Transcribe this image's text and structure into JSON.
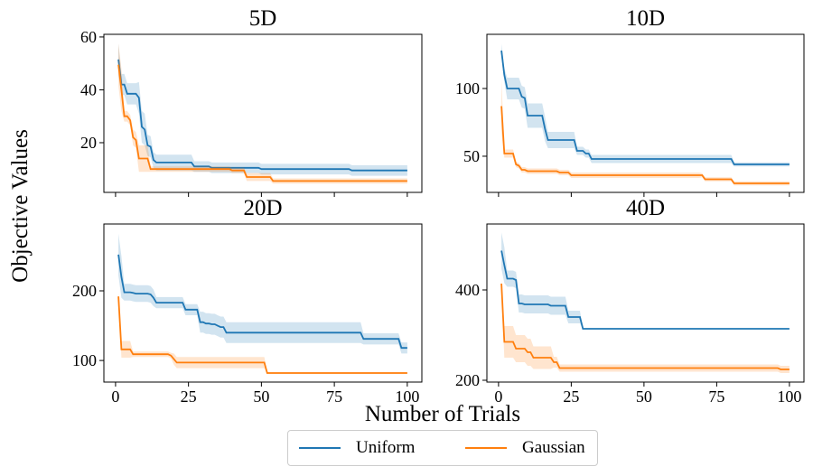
{
  "chart_data": {
    "type": "line",
    "xlabel": "Number of Trials",
    "ylabel": "Objective Values",
    "legend": {
      "placement": "bottom-center",
      "entries": [
        {
          "name": "Uniform",
          "color": "#1f77b4"
        },
        {
          "name": "Gaussian",
          "color": "#ff7f0e"
        }
      ]
    },
    "panels": [
      {
        "title": "5D",
        "xlim": [
          -4,
          105
        ],
        "ylim": [
          1.2,
          61
        ],
        "xticks": [
          0,
          25,
          50,
          75,
          100
        ],
        "xtick_labels_shown": false,
        "yticks": [
          20,
          40,
          60
        ],
        "series": [
          {
            "name": "Uniform",
            "steps": [
              [
                1,
                51.5
              ],
              [
                2,
                42
              ],
              [
                4,
                38.5
              ],
              [
                8,
                37
              ],
              [
                9,
                26
              ],
              [
                10,
                25
              ],
              [
                11,
                19
              ],
              [
                12,
                18.5
              ],
              [
                13,
                13.5
              ],
              [
                14,
                12.5
              ],
              [
                27,
                11
              ],
              [
                33,
                10.5
              ],
              [
                50,
                10
              ],
              [
                81,
                9.5
              ],
              [
                100,
                9.5
              ]
            ],
            "band": [
              [
                1,
                6
              ],
              [
                2,
                4
              ],
              [
                8,
                6
              ],
              [
                11,
                4
              ],
              [
                13,
                3
              ],
              [
                27,
                2
              ],
              [
                50,
                2
              ],
              [
                100,
                2
              ]
            ]
          },
          {
            "name": "Gaussian",
            "steps": [
              [
                1,
                49.5
              ],
              [
                2,
                40
              ],
              [
                3,
                30
              ],
              [
                5,
                28.5
              ],
              [
                6,
                22
              ],
              [
                7,
                21
              ],
              [
                8,
                14
              ],
              [
                12,
                10
              ],
              [
                40,
                9.5
              ],
              [
                45,
                7
              ],
              [
                52,
                7
              ],
              [
                54,
                5.5
              ],
              [
                100,
                5.5
              ]
            ],
            "band": [
              [
                1,
                8
              ],
              [
                3,
                2
              ],
              [
                6,
                3
              ],
              [
                8,
                5
              ],
              [
                12,
                1
              ],
              [
                45,
                1.5
              ],
              [
                54,
                1
              ],
              [
                100,
                1
              ]
            ]
          }
        ]
      },
      {
        "title": "10D",
        "xlim": [
          -4,
          105
        ],
        "ylim": [
          23.3,
          140
        ],
        "xticks": [
          0,
          25,
          50,
          75,
          100
        ],
        "xtick_labels_shown": false,
        "yticks": [
          50,
          100
        ],
        "series": [
          {
            "name": "Uniform",
            "steps": [
              [
                1,
                128
              ],
              [
                2,
                110
              ],
              [
                3,
                100
              ],
              [
                7,
                100
              ],
              [
                8,
                94
              ],
              [
                9,
                93
              ],
              [
                10,
                80
              ],
              [
                15,
                80
              ],
              [
                16,
                70
              ],
              [
                17,
                62
              ],
              [
                26,
                62
              ],
              [
                27,
                54
              ],
              [
                29,
                54
              ],
              [
                30,
                52
              ],
              [
                31,
                52
              ],
              [
                32,
                48
              ],
              [
                80,
                48
              ],
              [
                81,
                44
              ],
              [
                100,
                44
              ]
            ],
            "band": [
              [
                1,
                5
              ],
              [
                3,
                8
              ],
              [
                10,
                9
              ],
              [
                17,
                6
              ],
              [
                27,
                3
              ],
              [
                32,
                3
              ],
              [
                81,
                1.5
              ],
              [
                100,
                1.5
              ]
            ]
          },
          {
            "name": "Gaussian",
            "steps": [
              [
                1,
                87
              ],
              [
                2,
                52
              ],
              [
                5,
                52
              ],
              [
                6,
                44
              ],
              [
                7,
                43
              ],
              [
                8,
                40
              ],
              [
                10,
                39
              ],
              [
                20,
                39
              ],
              [
                21,
                38
              ],
              [
                24,
                38
              ],
              [
                25,
                36
              ],
              [
                70,
                36
              ],
              [
                71,
                33
              ],
              [
                80,
                33
              ],
              [
                81,
                30
              ],
              [
                100,
                30
              ]
            ],
            "band": [
              [
                1,
                20
              ],
              [
                2,
                3
              ],
              [
                6,
                2
              ],
              [
                20,
                2
              ],
              [
                70,
                1.5
              ],
              [
                100,
                1.5
              ]
            ]
          }
        ]
      },
      {
        "title": "20D",
        "xlim": [
          -4,
          105
        ],
        "ylim": [
          69,
          296
        ],
        "xticks": [
          0,
          25,
          50,
          75,
          100
        ],
        "xtick_labels": [
          "0",
          "25",
          "50",
          "75",
          "100"
        ],
        "yticks": [
          100,
          200
        ],
        "series": [
          {
            "name": "Uniform",
            "steps": [
              [
                1,
                252
              ],
              [
                2,
                220
              ],
              [
                3,
                198
              ],
              [
                6,
                197
              ],
              [
                7,
                196
              ],
              [
                12,
                195
              ],
              [
                13,
                190
              ],
              [
                14,
                183
              ],
              [
                23,
                183
              ],
              [
                24,
                173
              ],
              [
                28,
                173
              ],
              [
                29,
                155
              ],
              [
                31,
                153
              ],
              [
                33,
                152
              ],
              [
                35,
                150
              ],
              [
                36,
                148
              ],
              [
                38,
                140
              ],
              [
                84,
                140
              ],
              [
                85,
                131
              ],
              [
                97,
                131
              ],
              [
                98,
                118
              ],
              [
                100,
                118
              ]
            ],
            "band": [
              [
                1,
                30
              ],
              [
                3,
                12
              ],
              [
                14,
                8
              ],
              [
                29,
                15
              ],
              [
                38,
                15
              ],
              [
                85,
                8
              ],
              [
                98,
                8
              ],
              [
                100,
                8
              ]
            ]
          },
          {
            "name": "Gaussian",
            "steps": [
              [
                1,
                192
              ],
              [
                2,
                116
              ],
              [
                5,
                116
              ],
              [
                6,
                109
              ],
              [
                19,
                107
              ],
              [
                20,
                102
              ],
              [
                21,
                97
              ],
              [
                51,
                97
              ],
              [
                52,
                82
              ],
              [
                100,
                82
              ]
            ],
            "band": [
              [
                1,
                5
              ],
              [
                2,
                12
              ],
              [
                6,
                4
              ],
              [
                20,
                8
              ],
              [
                51,
                8
              ],
              [
                52,
                1.5
              ],
              [
                100,
                1.5
              ]
            ]
          }
        ]
      },
      {
        "title": "40D",
        "xlim": [
          -4,
          105
        ],
        "ylim": [
          196,
          546
        ],
        "xticks": [
          0,
          25,
          50,
          75,
          100
        ],
        "xtick_labels": [
          "0",
          "25",
          "50",
          "75",
          "100"
        ],
        "yticks": [
          200,
          400
        ],
        "series": [
          {
            "name": "Uniform",
            "steps": [
              [
                1,
                487
              ],
              [
                2,
                455
              ],
              [
                3,
                425
              ],
              [
                6,
                422
              ],
              [
                7,
                370
              ],
              [
                9,
                368
              ],
              [
                17,
                368
              ],
              [
                18,
                365
              ],
              [
                23,
                365
              ],
              [
                24,
                340
              ],
              [
                28,
                340
              ],
              [
                29,
                314
              ],
              [
                100,
                314
              ]
            ],
            "band": [
              [
                1,
                40
              ],
              [
                3,
                18
              ],
              [
                7,
                20
              ],
              [
                24,
                14
              ],
              [
                29,
                1
              ],
              [
                100,
                1
              ]
            ]
          },
          {
            "name": "Gaussian",
            "steps": [
              [
                1,
                414
              ],
              [
                2,
                285
              ],
              [
                5,
                285
              ],
              [
                6,
                270
              ],
              [
                9,
                270
              ],
              [
                10,
                262
              ],
              [
                12,
                250
              ],
              [
                18,
                250
              ],
              [
                19,
                240
              ],
              [
                21,
                227
              ],
              [
                96,
                227
              ],
              [
                97,
                224
              ],
              [
                100,
                224
              ]
            ],
            "band": [
              [
                1,
                10
              ],
              [
                2,
                35
              ],
              [
                6,
                30
              ],
              [
                12,
                25
              ],
              [
                19,
                12
              ],
              [
                21,
                8
              ],
              [
                100,
                8
              ]
            ]
          }
        ]
      }
    ]
  }
}
